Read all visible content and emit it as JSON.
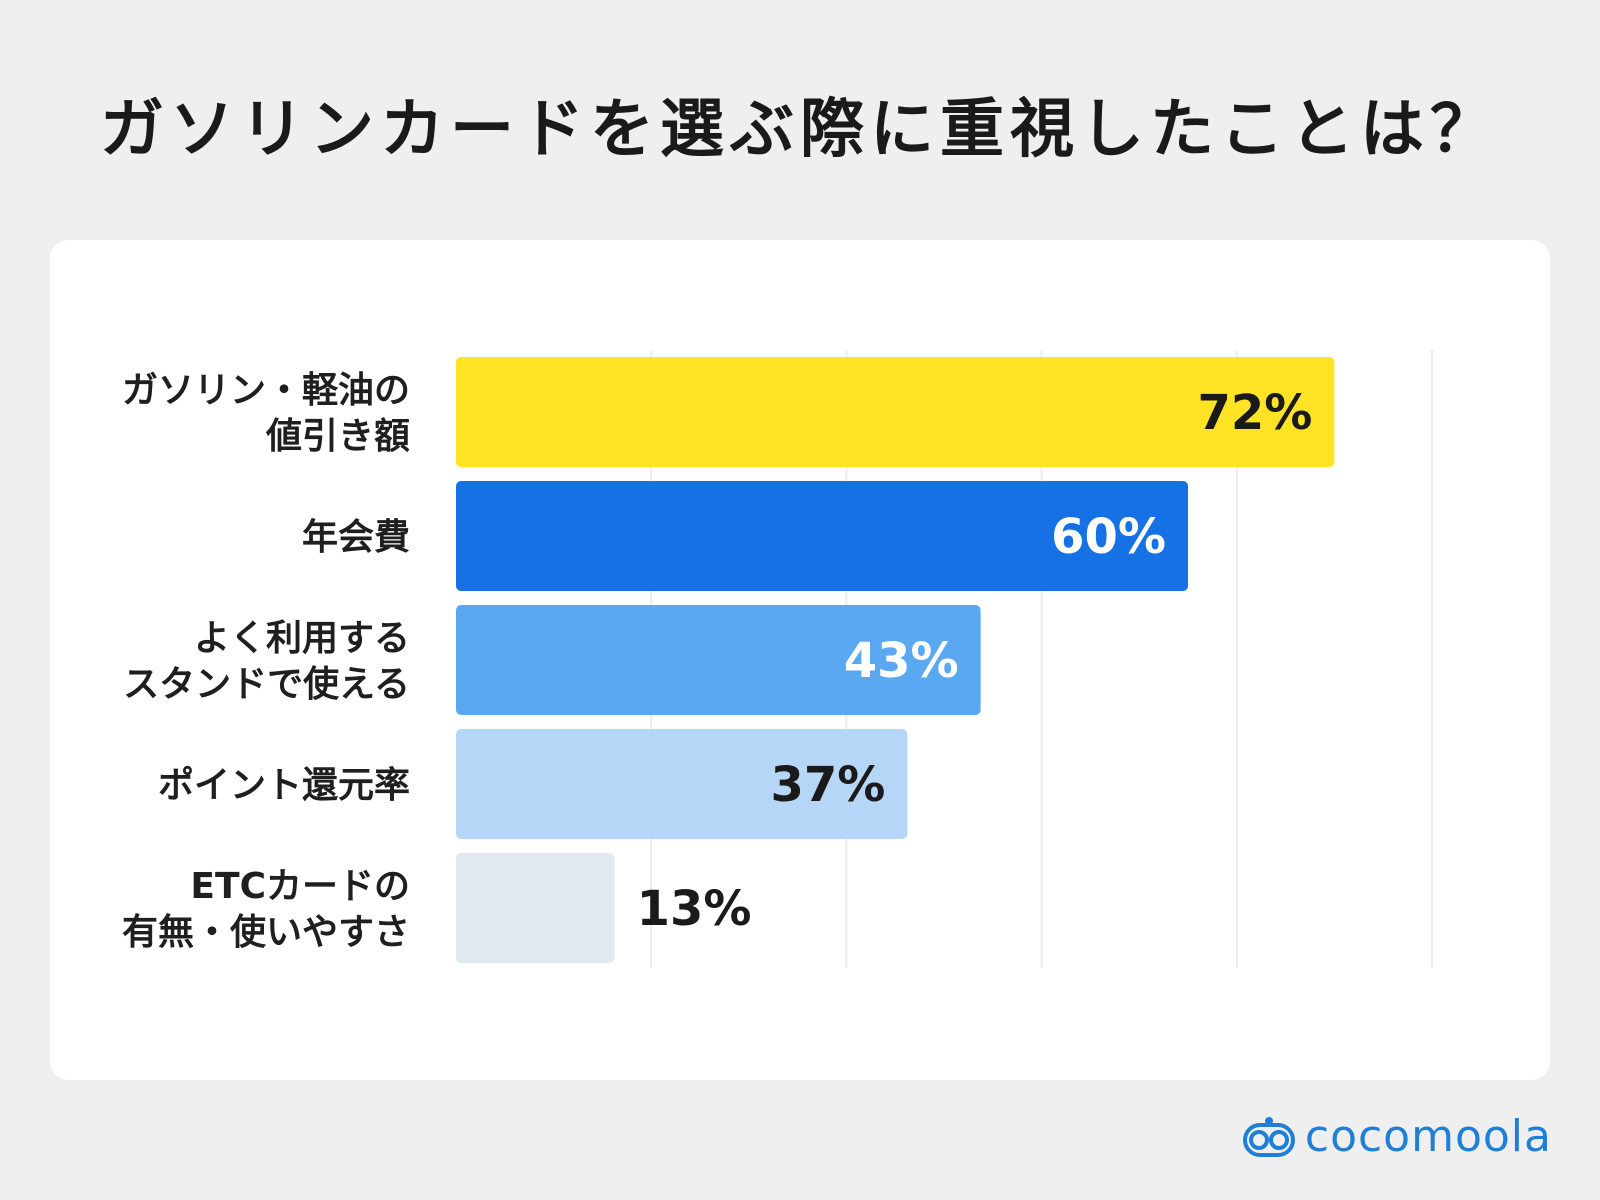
{
  "title": "ガソリンカードを選ぶ際に重視したことは？",
  "brand": "cocomoola",
  "colors": {
    "background": "#efefef",
    "card": "#ffffff",
    "brand": "#1f7fd6"
  },
  "chart_data": {
    "type": "bar",
    "orientation": "horizontal",
    "categories": [
      [
        "ガソリン・軽油の",
        "値引き額"
      ],
      [
        "年会費"
      ],
      [
        "よく利用する",
        "スタンドで使える"
      ],
      [
        "ポイント還元率"
      ],
      [
        "ETCカードの",
        "有無・使いやすさ"
      ]
    ],
    "values": [
      72,
      60,
      43,
      37,
      13
    ],
    "value_labels": [
      "72%",
      "60%",
      "43%",
      "37%",
      "13%"
    ],
    "bar_colors": [
      "#ffe324",
      "#1672e4",
      "#5aa8f2",
      "#b5d6f7",
      "#e3e9f0"
    ],
    "label_colors": [
      "#1a1a1a",
      "#ffffff",
      "#ffffff",
      "#1a1a1a",
      "#1a1a1a"
    ],
    "label_inside": [
      true,
      true,
      true,
      true,
      false
    ],
    "xlim": [
      0,
      80
    ],
    "grid": true,
    "unit": "%"
  }
}
